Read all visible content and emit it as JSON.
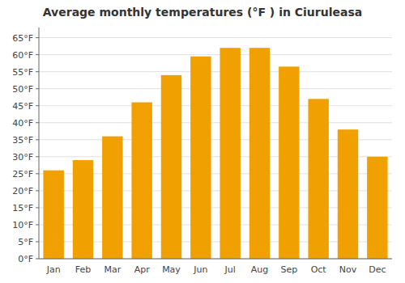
{
  "chart_data": {
    "type": "bar",
    "title": "Average monthly temperatures (°F ) in Ciuruleasa",
    "categories": [
      "Jan",
      "Feb",
      "Mar",
      "Apr",
      "May",
      "Jun",
      "Jul",
      "Aug",
      "Sep",
      "Oct",
      "Nov",
      "Dec"
    ],
    "values": [
      26.0,
      29.0,
      36.0,
      46.0,
      54.0,
      59.5,
      62.0,
      62.0,
      56.5,
      47.0,
      38.0,
      30.0
    ],
    "color": "#F0A000",
    "ylim": [
      0,
      68
    ],
    "yticks": [
      {
        "value": 0,
        "label": "0°F"
      },
      {
        "value": 5,
        "label": "5°F"
      },
      {
        "value": 10,
        "label": "10°F"
      },
      {
        "value": 15,
        "label": "15°F"
      },
      {
        "value": 20,
        "label": "20°F"
      },
      {
        "value": 25,
        "label": "25°F"
      },
      {
        "value": 30,
        "label": "30°F"
      },
      {
        "value": 35,
        "label": "35°F"
      },
      {
        "value": 40,
        "label": "40°F"
      },
      {
        "value": 45,
        "label": "45°F"
      },
      {
        "value": 50,
        "label": "50°F"
      },
      {
        "value": 55,
        "label": "55°F"
      },
      {
        "value": 60,
        "label": "60°F"
      },
      {
        "value": 65,
        "label": "65°F"
      }
    ],
    "grid": true
  }
}
